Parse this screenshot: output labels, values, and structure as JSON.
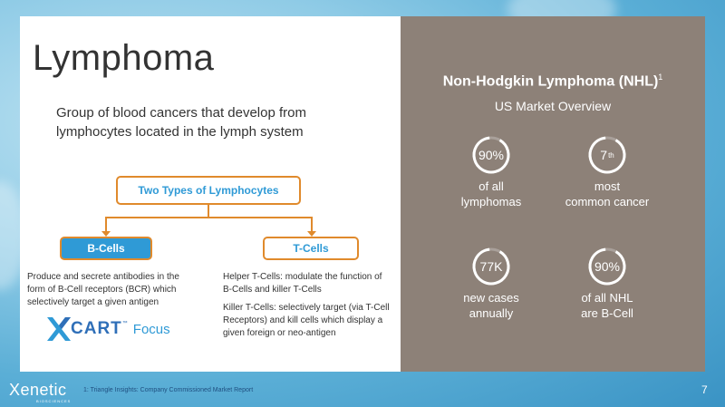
{
  "left": {
    "title": "Lymphoma",
    "description": "Group of blood cancers that develop from lymphocytes located in the lymph system",
    "diagram": {
      "top_label": "Two Types of Lymphocytes",
      "b_label": "B-Cells",
      "t_label": "T-Cells",
      "b_text": "Produce and secrete antibodies in the form of B-Cell receptors (BCR) which selectively target a given antigen",
      "t_text_1": "Helper T-Cells: modulate the function of B-Cells and killer T-Cells",
      "t_text_2": "Killer T-Cells: selectively target (via T-Cell Receptors) and kill cells which display a given foreign or neo-antigen"
    },
    "logo": {
      "name": "CART",
      "tm": "™",
      "focus": "Focus"
    }
  },
  "right": {
    "title": "Non-Hodgkin Lymphoma (NHL)",
    "title_sup": "1",
    "subtitle": "US Market Overview",
    "stats": [
      {
        "value": "90%",
        "label_1": "of all",
        "label_2": "lymphomas",
        "ring_fraction": 0.9
      },
      {
        "value": "7",
        "value_sup": "th",
        "label_1": "most",
        "label_2": "common cancer",
        "ring_fraction": 0.9
      },
      {
        "value": "77K",
        "label_1": "new cases",
        "label_2": "annually",
        "ring_fraction": 0.9
      },
      {
        "value": "90%",
        "label_1": "of all NHL",
        "label_2": "are B-Cell",
        "ring_fraction": 0.9
      }
    ]
  },
  "footer": {
    "brand": "Xenetic",
    "brand_sub": "BIOSCIENCES",
    "footnote": "1: Triangle Insights: Company Commissioned Market Report",
    "page": "7"
  },
  "colors": {
    "accent_orange": "#e08a2c",
    "accent_blue": "#2f9ad6",
    "panel_gray": "#8d8178"
  }
}
